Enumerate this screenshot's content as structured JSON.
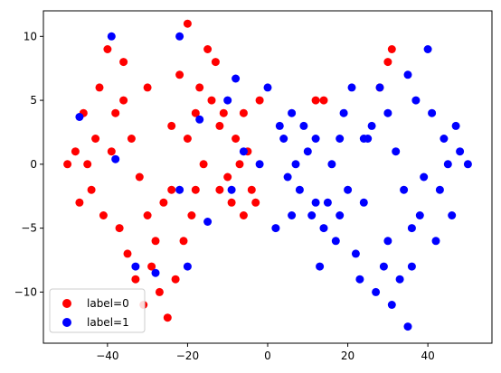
{
  "chart_data": {
    "type": "scatter",
    "title": "",
    "xlabel": "",
    "ylabel": "",
    "xlim": [
      -56,
      56
    ],
    "ylim": [
      -14,
      12
    ],
    "xticks": [
      -40,
      -20,
      0,
      20,
      40
    ],
    "yticks": [
      -10,
      -5,
      0,
      5,
      10
    ],
    "grid": false,
    "legend_position": "lower-left",
    "series": [
      {
        "name": "label=0",
        "color": "#ff0000",
        "points": [
          [
            -48,
            1
          ],
          [
            -46,
            4
          ],
          [
            -44,
            -2
          ],
          [
            -42,
            6
          ],
          [
            -40,
            9
          ],
          [
            -38,
            4
          ],
          [
            -36,
            8
          ],
          [
            -34,
            2
          ],
          [
            -32,
            -1
          ],
          [
            -30,
            -4
          ],
          [
            -28,
            -6
          ],
          [
            -26,
            -3
          ],
          [
            -24,
            3
          ],
          [
            -22,
            7
          ],
          [
            -20,
            2
          ],
          [
            -18,
            -2
          ],
          [
            -16,
            0
          ],
          [
            -14,
            5
          ],
          [
            -12,
            3
          ],
          [
            -10,
            -1
          ],
          [
            -8,
            2
          ],
          [
            -6,
            4
          ],
          [
            -4,
            -2
          ],
          [
            -2,
            5
          ],
          [
            -47,
            -3
          ],
          [
            -45,
            0
          ],
          [
            -43,
            2
          ],
          [
            -41,
            -4
          ],
          [
            -39,
            1
          ],
          [
            -37,
            -5
          ],
          [
            -35,
            -7
          ],
          [
            -33,
            -9
          ],
          [
            -31,
            -11
          ],
          [
            -29,
            -8
          ],
          [
            -27,
            -10
          ],
          [
            -25,
            -12
          ],
          [
            -23,
            -9
          ],
          [
            -21,
            -6
          ],
          [
            -19,
            -4
          ],
          [
            -17,
            6
          ],
          [
            -15,
            9
          ],
          [
            -13,
            8
          ],
          [
            -11,
            4
          ],
          [
            -9,
            -3
          ],
          [
            -7,
            0
          ],
          [
            -5,
            1
          ],
          [
            -3,
            -3
          ],
          [
            -36,
            5
          ],
          [
            -30,
            6
          ],
          [
            -24,
            -2
          ],
          [
            -18,
            4
          ],
          [
            -12,
            -2
          ],
          [
            -6,
            -4
          ],
          [
            -50,
            0
          ],
          [
            -20,
            11
          ],
          [
            31,
            9
          ],
          [
            30,
            8
          ],
          [
            28,
            6
          ],
          [
            14,
            5
          ],
          [
            12,
            5
          ]
        ]
      },
      {
        "name": "label=1",
        "color": "#0000ff",
        "points": [
          [
            48,
            1
          ],
          [
            46,
            -4
          ],
          [
            44,
            2
          ],
          [
            42,
            -6
          ],
          [
            40,
            9
          ],
          [
            38,
            -4
          ],
          [
            36,
            -8
          ],
          [
            34,
            -2
          ],
          [
            32,
            1
          ],
          [
            30,
            4
          ],
          [
            28,
            6
          ],
          [
            26,
            3
          ],
          [
            24,
            -3
          ],
          [
            22,
            -7
          ],
          [
            20,
            -2
          ],
          [
            18,
            2
          ],
          [
            16,
            0
          ],
          [
            14,
            -5
          ],
          [
            12,
            -3
          ],
          [
            10,
            1
          ],
          [
            8,
            -2
          ],
          [
            6,
            -4
          ],
          [
            4,
            2
          ],
          [
            2,
            -5
          ],
          [
            47,
            3
          ],
          [
            45,
            0
          ],
          [
            43,
            -2
          ],
          [
            41,
            4
          ],
          [
            39,
            -1
          ],
          [
            37,
            5
          ],
          [
            35,
            7
          ],
          [
            33,
            -9
          ],
          [
            31,
            -11
          ],
          [
            29,
            -8
          ],
          [
            27,
            -10
          ],
          [
            25,
            2
          ],
          [
            23,
            -9
          ],
          [
            21,
            6
          ],
          [
            19,
            4
          ],
          [
            17,
            -6
          ],
          [
            15,
            -3
          ],
          [
            13,
            -8
          ],
          [
            11,
            -4
          ],
          [
            9,
            3
          ],
          [
            7,
            0
          ],
          [
            5,
            -1
          ],
          [
            3,
            3
          ],
          [
            36,
            -5
          ],
          [
            30,
            -6
          ],
          [
            24,
            2
          ],
          [
            18,
            -4
          ],
          [
            12,
            2
          ],
          [
            6,
            4
          ],
          [
            50,
            0
          ],
          [
            35,
            -12.7
          ],
          [
            -39,
            10
          ],
          [
            -22,
            10
          ],
          [
            -47,
            3.7
          ],
          [
            -38,
            0.4
          ],
          [
            -33,
            -8
          ],
          [
            -28,
            -8.5
          ],
          [
            -22,
            -2
          ],
          [
            -20,
            -8
          ],
          [
            -17,
            3.5
          ],
          [
            -15,
            -4.5
          ],
          [
            -10,
            5
          ],
          [
            -8,
            6.7
          ],
          [
            -9,
            -2
          ],
          [
            -6,
            1
          ],
          [
            -2,
            0
          ],
          [
            0,
            6
          ]
        ]
      }
    ]
  }
}
